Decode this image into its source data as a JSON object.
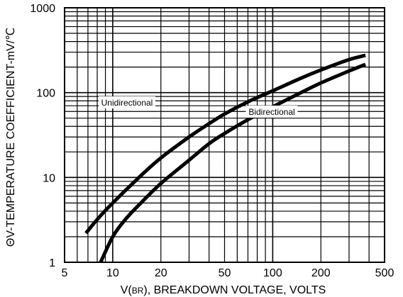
{
  "chart_data": {
    "type": "line",
    "xscale": "log",
    "yscale": "log",
    "xlim": [
      5,
      500
    ],
    "ylim": [
      1,
      1000
    ],
    "xticks": [
      5,
      10,
      20,
      50,
      100,
      200,
      500
    ],
    "xtick_labels": [
      "5",
      "10",
      "20",
      "50",
      "100",
      "200",
      "500"
    ],
    "yticks": [
      1,
      10,
      100,
      1000
    ],
    "ytick_labels": [
      "1",
      "10",
      "100",
      "1000"
    ],
    "xlabel_parts": [
      "V(",
      "BR",
      "), BREAKDOWN VOLTAGE, VOLTS"
    ],
    "ylabel": "ΘV-TEMPERATURE COEFFICIENT-mV/℃",
    "grid": true,
    "series": [
      {
        "name": "Unidirectional",
        "color": "#000000",
        "x": [
          6.8,
          8,
          10,
          15,
          20,
          30,
          40,
          50,
          70,
          100,
          150,
          200,
          300,
          380
        ],
        "y": [
          2.2,
          3.2,
          5,
          10.5,
          17,
          30,
          43,
          56,
          78,
          105,
          148,
          185,
          245,
          275
        ]
      },
      {
        "name": "Bidirectional",
        "color": "#000000",
        "x": [
          8.4,
          10,
          12,
          15,
          20,
          30,
          40,
          50,
          70,
          100,
          150,
          200,
          300,
          380
        ],
        "y": [
          1.0,
          2.0,
          3.2,
          5,
          8.5,
          16,
          25,
          33,
          48,
          68,
          100,
          130,
          180,
          215
        ]
      }
    ]
  }
}
